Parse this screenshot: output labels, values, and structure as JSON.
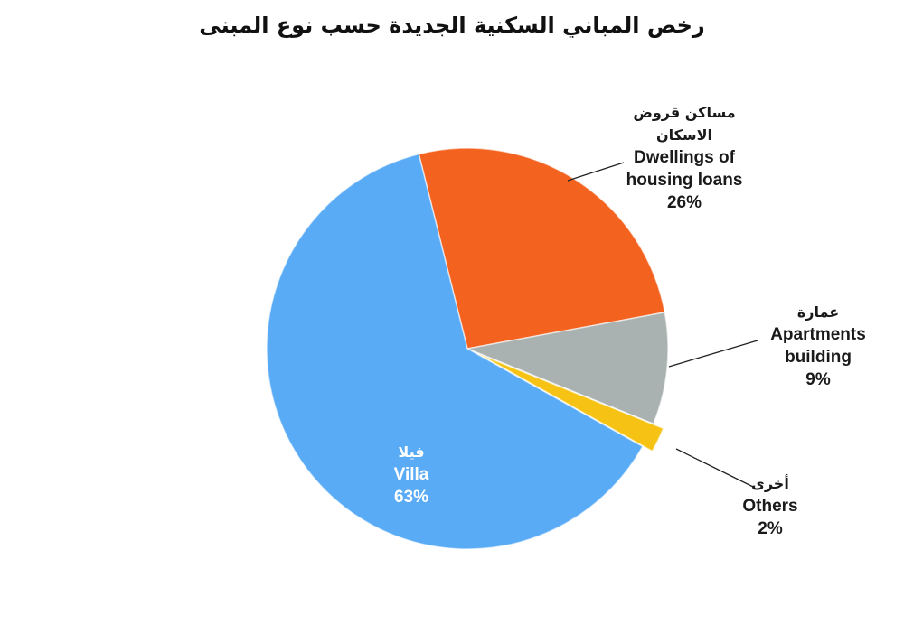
{
  "chart_data": {
    "type": "pie",
    "title": "رخص المباني السكنية الجديدة حسب نوع المبنى",
    "categories": [
      "Dwellings of housing loans",
      "Apartments building",
      "Others",
      "Villa"
    ],
    "labels_ar": [
      "مساكن قروض الاسكان",
      "عمارة",
      "أخرى",
      "فيلا"
    ],
    "values": [
      26,
      9,
      2,
      63
    ],
    "value_labels": [
      "26%",
      "9%",
      "2%",
      "63%"
    ],
    "colors": [
      "#f4621f",
      "#a9b1b1",
      "#f6c314",
      "#5aabf6"
    ]
  }
}
